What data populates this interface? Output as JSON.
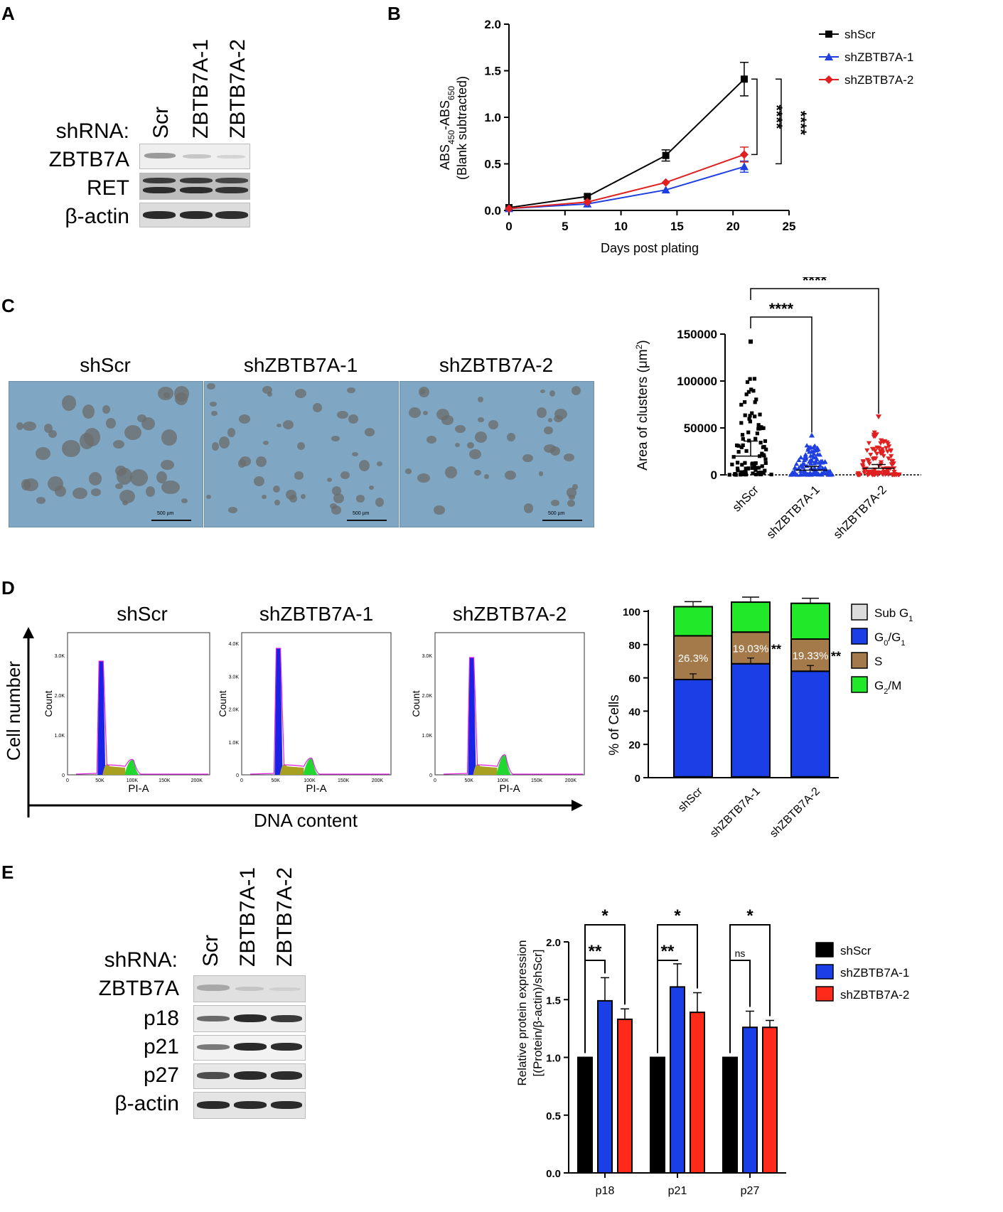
{
  "panels": {
    "A": {
      "label": "A",
      "shrna_label": "shRNA:",
      "lanes": [
        "Scr",
        "ZBTB7A-1",
        "ZBTB7A-2"
      ],
      "rows": [
        "ZBTB7A",
        "RET",
        "β-actin"
      ]
    },
    "B": {
      "label": "B",
      "ylabel_line1": "ABS450-ABS650",
      "ylabel_abs": "ABS",
      "ylabel_sub1": "450",
      "ylabel_dash": "-ABS",
      "ylabel_sub2": "650",
      "ylabel_line2": "(Blank subtracted)",
      "xlabel": "Days post plating",
      "sig1": "****",
      "sig2": "****"
    },
    "C": {
      "label": "C",
      "images": [
        {
          "title": "shScr",
          "scale": "500 µm"
        },
        {
          "title": "shZBTB7A-1",
          "scale": "500 µm"
        },
        {
          "title": "shZBTB7A-2",
          "scale": "500 µm"
        }
      ],
      "ylabel": "Area of clusters (μm2)",
      "ylabel_main": "Area of clusters (μm",
      "ylabel_sup": "2",
      "ylabel_end": ")",
      "sig1": "****",
      "sig2": "****"
    },
    "D": {
      "label": "D",
      "y_axis_label": "Cell number",
      "x_axis_label": "DNA content",
      "histograms": [
        {
          "title": "shScr",
          "ylabel": "Count",
          "xlabel": "PI-A",
          "yticks": [
            "0",
            "1.0K",
            "2.0K",
            "3.0K"
          ]
        },
        {
          "title": "shZBTB7A-1",
          "ylabel": "Count",
          "xlabel": "PI-A",
          "yticks": [
            "0",
            "1.0K",
            "2.0K",
            "3.0K",
            "4.0K"
          ]
        },
        {
          "title": "shZBTB7A-2",
          "ylabel": "Count",
          "xlabel": "PI-A",
          "yticks": [
            "0",
            "1.0K",
            "2.0K",
            "3.0K"
          ]
        }
      ],
      "hist_xticks": [
        "0",
        "50K",
        "100K",
        "150K",
        "200K"
      ],
      "ylabel": "% of Cells"
    },
    "E": {
      "label": "E",
      "shrna_label": "shRNA:",
      "lanes": [
        "Scr",
        "ZBTB7A-1",
        "ZBTB7A-2"
      ],
      "rows": [
        "ZBTB7A",
        "p18",
        "p21",
        "p27",
        "β-actin"
      ],
      "ylabel_line1": "Relative protein expression",
      "ylabel_line2": "[(Protein/β-actin)/shScr]",
      "sig_labels": [
        "*",
        "**",
        "*",
        "**",
        "*",
        "ns"
      ]
    }
  },
  "chart_data": [
    {
      "panel": "B",
      "type": "line",
      "xlabel": "Days post plating",
      "ylabel": "ABS450-ABS650 (Blank subtracted)",
      "x": [
        0,
        7,
        14,
        21
      ],
      "xlim": [
        0,
        25
      ],
      "ylim": [
        0,
        2.0
      ],
      "xticks": [
        "0",
        "5",
        "10",
        "15",
        "20",
        "25"
      ],
      "yticks": [
        "0.0",
        "0.5",
        "1.0",
        "1.5",
        "2.0"
      ],
      "legend_position": "top-right",
      "series": [
        {
          "name": "shScr",
          "color": "#000000",
          "marker": "square",
          "values": [
            0.03,
            0.15,
            0.59,
            1.41
          ],
          "errors": [
            0.01,
            0.02,
            0.06,
            0.18
          ]
        },
        {
          "name": "shZBTB7A-1",
          "color": "#1f3fe0",
          "marker": "triangle",
          "values": [
            0.02,
            0.07,
            0.22,
            0.47
          ],
          "errors": [
            0.01,
            0.01,
            0.02,
            0.06
          ]
        },
        {
          "name": "shZBTB7A-2",
          "color": "#e02020",
          "marker": "diamond",
          "values": [
            0.02,
            0.09,
            0.3,
            0.6
          ],
          "errors": [
            0.01,
            0.01,
            0.02,
            0.08
          ]
        }
      ],
      "annotations": [
        "****",
        "****"
      ]
    },
    {
      "panel": "C",
      "type": "scatter",
      "categories": [
        "shScr",
        "shZBTB7A-1",
        "shZBTB7A-2"
      ],
      "ylabel": "Area of clusters (μm2)",
      "ylim": [
        0,
        150000
      ],
      "yticks": [
        "0",
        "50000",
        "100000",
        "150000"
      ],
      "series": [
        {
          "name": "shScr",
          "color": "#000000",
          "marker": "square",
          "mean": 20000,
          "sem": 16000,
          "max": 142000
        },
        {
          "name": "shZBTB7A-1",
          "color": "#1f3fe0",
          "marker": "triangle",
          "mean": 5000,
          "sem": 4000,
          "max": 42000
        },
        {
          "name": "shZBTB7A-2",
          "color": "#e02020",
          "marker": "triangle-down",
          "mean": 7000,
          "sem": 4000,
          "max": 62000
        }
      ],
      "annotations": [
        "****",
        "****"
      ]
    },
    {
      "panel": "D",
      "type": "bar",
      "stacked": true,
      "categories": [
        "shScr",
        "shZBTB7A-1",
        "shZBTB7A-2"
      ],
      "ylabel": "% of Cells",
      "ylim": [
        0,
        100
      ],
      "yticks": [
        "0",
        "20",
        "40",
        "60",
        "80",
        "100"
      ],
      "legend_position": "right",
      "series": [
        {
          "name": "Sub G1",
          "label_main": "Sub G",
          "label_sub": "1",
          "color": "#dcdcdc",
          "values": [
            0.5,
            0.5,
            0.5
          ]
        },
        {
          "name": "G0/G1",
          "label_main": "G",
          "label_sub": "0",
          "label_mid": "/G",
          "label_sub2": "1",
          "color": "#1a3fe6",
          "values": [
            58.5,
            68.0,
            63.5
          ]
        },
        {
          "name": "S",
          "label_main": "S",
          "color": "#a57a4a",
          "values": [
            26.3,
            19.03,
            19.33
          ]
        },
        {
          "name": "G2/M",
          "label_main": "G",
          "label_sub": "2",
          "label_mid": "/M",
          "color": "#22e82a",
          "values": [
            17.5,
            18.0,
            21.5
          ]
        }
      ],
      "s_labels": [
        "26.3%",
        "19.03%",
        "19.33%"
      ],
      "s_sig": [
        "",
        "**",
        "**"
      ]
    },
    {
      "panel": "E",
      "type": "bar",
      "categories": [
        "p18",
        "p21",
        "p27"
      ],
      "ylabel": "Relative protein expression [(Protein/β-actin)/shScr]",
      "ylim": [
        0,
        2.0
      ],
      "yticks": [
        "0.0",
        "0.5",
        "1.0",
        "1.5",
        "2.0"
      ],
      "legend_position": "right",
      "series": [
        {
          "name": "shScr",
          "color": "#000000",
          "values": [
            1.0,
            1.0,
            1.0
          ],
          "errors": [
            0,
            0,
            0
          ]
        },
        {
          "name": "shZBTB7A-1",
          "color": "#1a3fe6",
          "values": [
            1.49,
            1.61,
            1.26
          ],
          "errors": [
            0.2,
            0.2,
            0.14
          ]
        },
        {
          "name": "shZBTB7A-2",
          "color": "#ff2a1a",
          "values": [
            1.33,
            1.39,
            1.26
          ],
          "errors": [
            0.09,
            0.17,
            0.06
          ]
        }
      ],
      "annotations": [
        {
          "category": "p18",
          "top": "*",
          "bottom": "**"
        },
        {
          "category": "p21",
          "top": "*",
          "bottom": "**"
        },
        {
          "category": "p27",
          "top": "*",
          "bottom": "ns"
        }
      ]
    }
  ]
}
